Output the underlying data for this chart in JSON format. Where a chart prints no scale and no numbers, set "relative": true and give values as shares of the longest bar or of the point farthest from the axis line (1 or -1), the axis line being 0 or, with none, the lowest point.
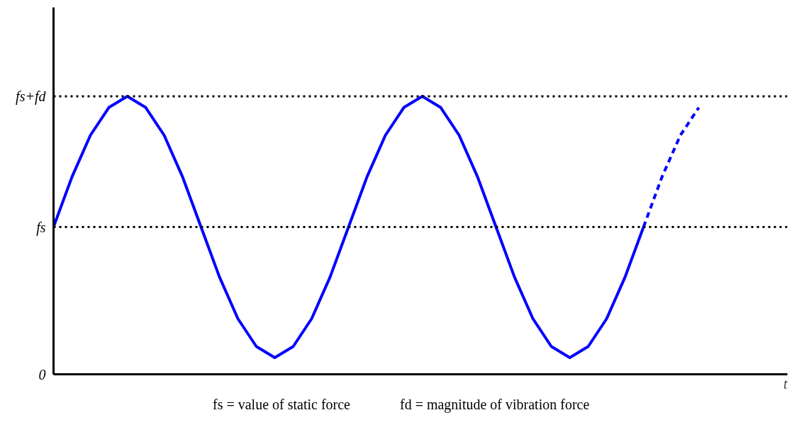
{
  "chart_data": {
    "type": "line",
    "relative": true,
    "xlabel": "t",
    "categories": [
      null,
      null,
      null,
      null,
      null,
      null,
      null,
      null,
      null,
      null,
      null,
      null,
      null,
      null,
      null,
      null,
      null,
      null,
      null,
      null,
      null,
      null,
      null,
      null,
      null,
      null,
      null,
      null,
      null,
      null,
      null,
      null,
      null,
      null,
      null,
      null,
      null,
      null,
      null,
      null
    ],
    "marker": "none",
    "series": [
      {
        "color": "#0000ff",
        "line_style": "solid",
        "values": [
          0.53,
          0.71,
          0.86,
          0.96,
          1,
          0.96,
          0.86,
          0.71,
          0.53,
          0.35,
          0.2,
          0.1,
          0.06,
          0.1,
          0.2,
          0.35,
          0.53,
          0.71,
          0.86,
          0.96,
          1,
          0.96,
          0.86,
          0.71,
          0.53,
          0.35,
          0.2,
          0.1,
          0.06,
          0.1,
          0.2,
          0.35,
          0.53,
          null,
          null,
          null,
          null,
          null,
          null,
          null
        ]
      },
      {
        "color": "#0000ff",
        "line_style": "dashed",
        "values": [
          null,
          null,
          null,
          null,
          null,
          null,
          null,
          null,
          null,
          null,
          null,
          null,
          null,
          null,
          null,
          null,
          null,
          null,
          null,
          null,
          null,
          null,
          null,
          null,
          null,
          null,
          null,
          null,
          null,
          null,
          null,
          null,
          0.53,
          0.71,
          0.86,
          0.96,
          null,
          null,
          null,
          null
        ]
      }
    ],
    "ref_lines": [
      {
        "axis": "y",
        "value": 0.53,
        "label": "fs",
        "color": "#000000",
        "line_style": "dotted"
      },
      {
        "axis": "y",
        "value": 1,
        "label": "fs+fd",
        "color": "#000000",
        "line_style": "dotted"
      }
    ],
    "annotations": [
      "0",
      "fs = value of static force",
      "fd = magnitude of vibration force"
    ]
  }
}
